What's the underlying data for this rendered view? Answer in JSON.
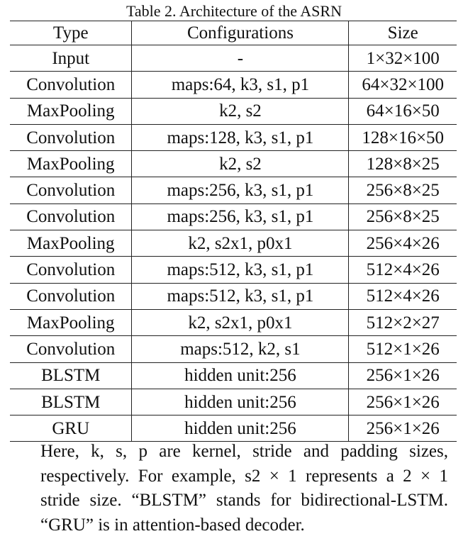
{
  "caption": "Table 2. Architecture of the ASRN",
  "headers": [
    "Type",
    "Configurations",
    "Size"
  ],
  "rows": [
    [
      "Input",
      "-",
      "1×32×100"
    ],
    [
      "Convolution",
      "maps:64, k3, s1, p1",
      "64×32×100"
    ],
    [
      "MaxPooling",
      "k2, s2",
      "64×16×50"
    ],
    [
      "Convolution",
      "maps:128, k3, s1, p1",
      "128×16×50"
    ],
    [
      "MaxPooling",
      "k2, s2",
      "128×8×25"
    ],
    [
      "Convolution",
      "maps:256, k3, s1, p1",
      "256×8×25"
    ],
    [
      "Convolution",
      "maps:256, k3, s1, p1",
      "256×8×25"
    ],
    [
      "MaxPooling",
      "k2, s2x1, p0x1",
      "256×4×26"
    ],
    [
      "Convolution",
      "maps:512, k3, s1, p1",
      "512×4×26"
    ],
    [
      "Convolution",
      "maps:512, k3, s1, p1",
      "512×4×26"
    ],
    [
      "MaxPooling",
      "k2, s2x1, p0x1",
      "512×2×27"
    ],
    [
      "Convolution",
      "maps:512, k2, s1",
      "512×1×26"
    ],
    [
      "BLSTM",
      "hidden unit:256",
      "256×1×26"
    ],
    [
      "BLSTM",
      "hidden unit:256",
      "256×1×26"
    ],
    [
      "GRU",
      "hidden unit:256",
      "256×1×26"
    ]
  ],
  "note": "Here, k, s, p are kernel, stride and padding sizes, respectively. For example, s2 × 1 represents a 2 × 1 stride size. “BLSTM” stands for bidirectional-LSTM. “GRU” is in attention-based decoder."
}
